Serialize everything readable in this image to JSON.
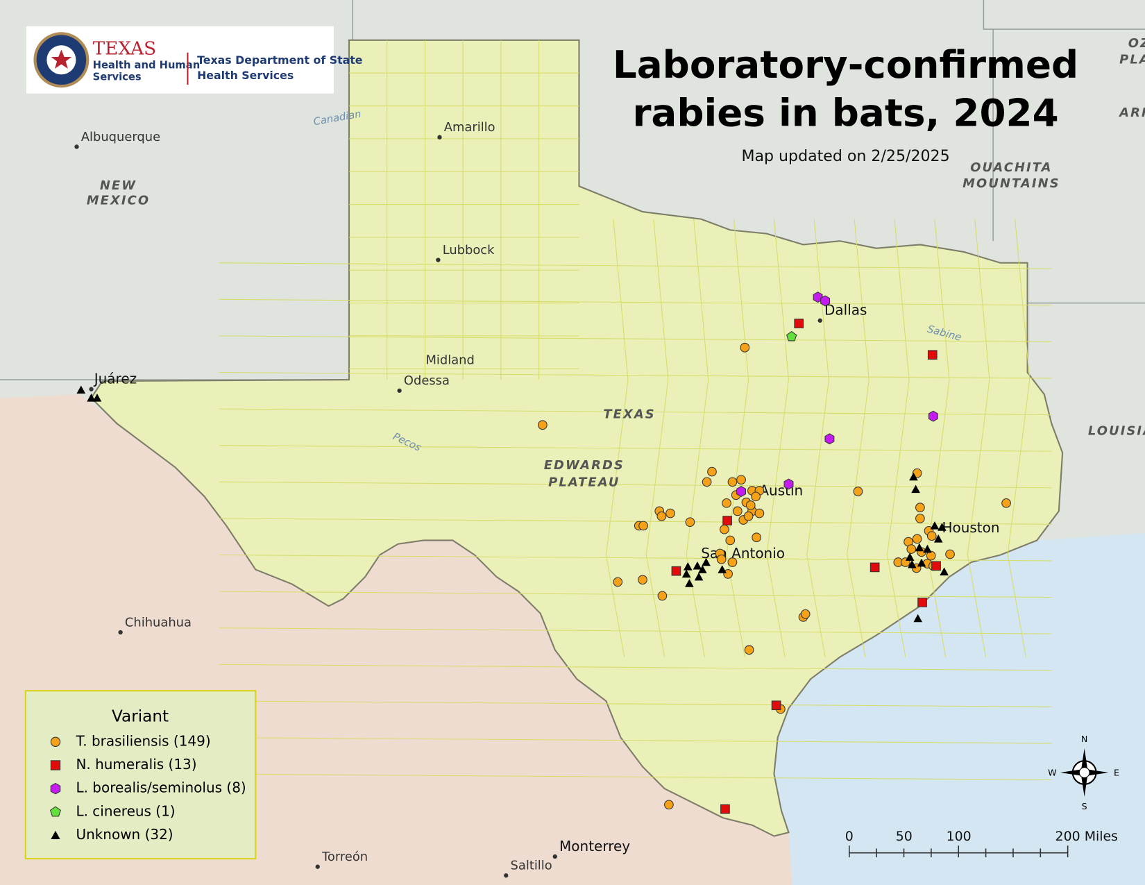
{
  "header": {
    "logo_title": "TEXAS",
    "logo_line1": "Health and Human",
    "logo_line2": "Services",
    "dept_line1": "Texas Department of State",
    "dept_line2": "Health Services"
  },
  "title_line1": "Laboratory-confirmed",
  "title_line2": "rabies in bats, 2024",
  "subtitle": "Map updated on 2/25/2025",
  "legend": {
    "title": "Variant",
    "items": [
      "T. brasiliensis (149)",
      "N. humeralis (13)",
      "L. borealis/seminolus (8)",
      "L. cinereus (1)",
      "Unknown (32)"
    ]
  },
  "places": [
    "Amarillo",
    "Lubbock",
    "Midland",
    "Odessa",
    "Albuquerque",
    "Juárez",
    "Dallas",
    "Austin",
    "Houston",
    "San Antonio",
    "Chihuahua",
    "Torreón",
    "Monterrey",
    "Saltillo"
  ],
  "regions": [
    "NEW",
    "MEXICO",
    "TEXAS",
    "EDWARDS",
    "PLATEAU",
    "OUACHITA",
    "MOUNTAINS",
    "LOUISIA",
    "ARK",
    "OZ",
    "PLA"
  ],
  "rivers": [
    "Canadian",
    "Pecos",
    "Sabine"
  ],
  "scale": [
    "0",
    "50",
    "100",
    "200 Miles"
  ],
  "compass": [
    "N",
    "S",
    "W",
    "E"
  ]
}
